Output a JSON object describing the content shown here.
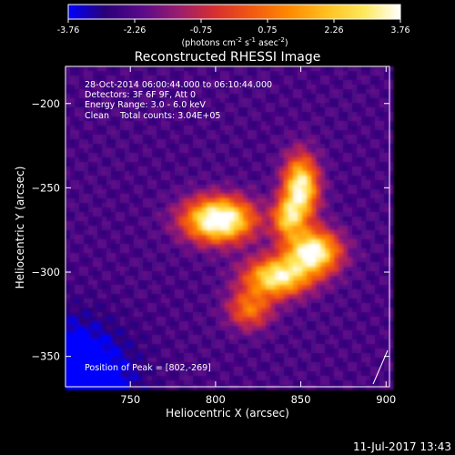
{
  "chart_data": {
    "type": "heatmap",
    "title": "Reconstructed RHESSI Image",
    "xlabel": "Heliocentric X (arcsec)",
    "ylabel": "Heliocentric Y (arcsec)",
    "xlim": [
      712,
      902
    ],
    "ylim": [
      -368,
      -178
    ],
    "x_ticks": [
      750,
      800,
      850,
      900
    ],
    "y_ticks": [
      -200,
      -250,
      -300,
      -350
    ],
    "colormap": [
      "#0000ff",
      "#2a0077",
      "#5a0a8a",
      "#9a1d6e",
      "#d8302e",
      "#f25a10",
      "#ff8a00",
      "#ffc020",
      "#ffe85a",
      "#ffffff"
    ],
    "colorbar": {
      "range": [
        -3.76,
        3.76
      ],
      "ticks": [
        "-3.76",
        "-2.26",
        "-0.75",
        "0.75",
        "2.26",
        "3.76"
      ],
      "label_parts": [
        "(photons cm",
        "-2",
        " s",
        "-1",
        " asec",
        "-2",
        ")"
      ]
    },
    "annotations": [
      "28-Oct-2014 06:00:44.000 to 06:10:44.000",
      "Detectors: 3F 6F 9F, Att 0",
      "Energy Range: 3.0 - 6.0 keV",
      "Clean    Total counts: 3.04E+05"
    ],
    "peak_text": "Position of Peak = [802,-269]",
    "peak": {
      "x": 802,
      "y": -269
    },
    "sources": [
      {
        "x": 802,
        "y": -269,
        "value": 3.76
      },
      {
        "x": 850,
        "y": -250,
        "value": 3.2
      },
      {
        "x": 855,
        "y": -290,
        "value": 3.3
      },
      {
        "x": 838,
        "y": -303,
        "value": 3.0
      }
    ],
    "timestamp": "11-Jul-2017 13:43"
  }
}
